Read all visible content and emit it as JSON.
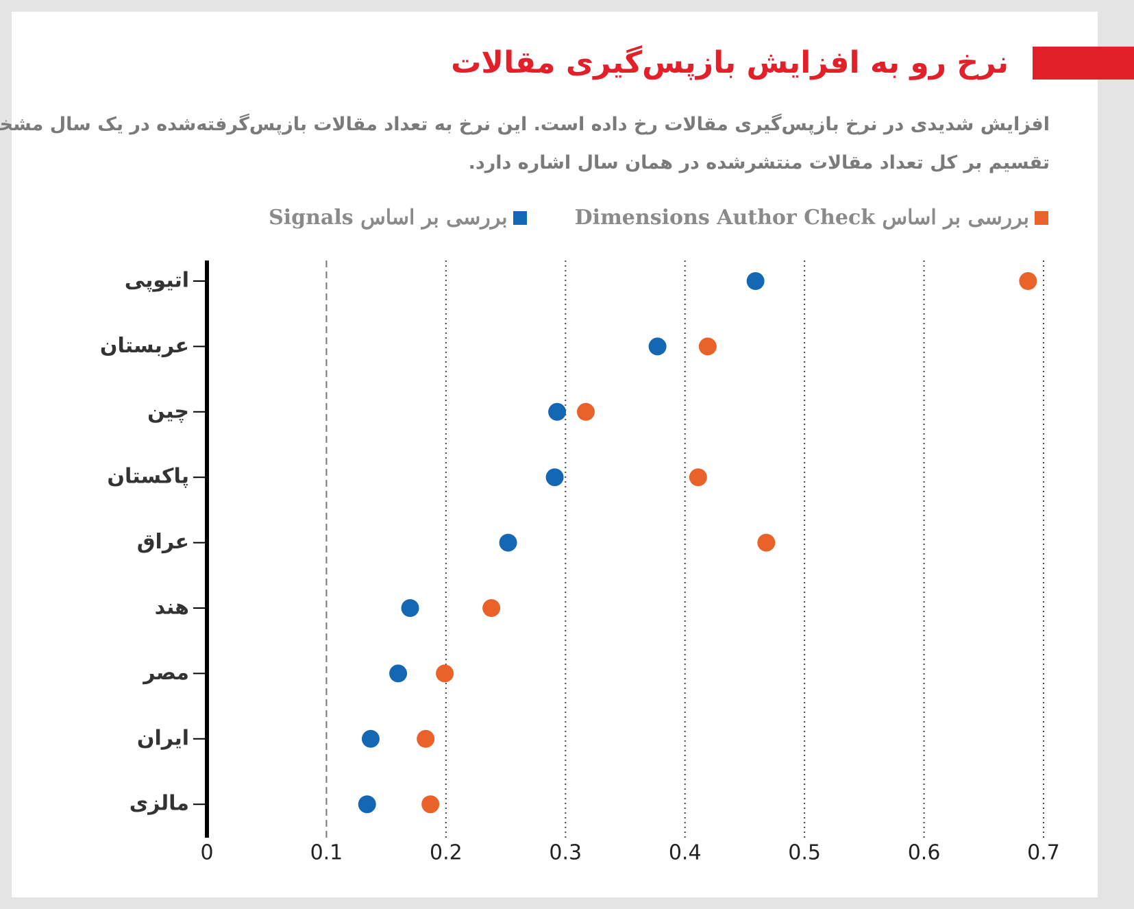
{
  "chart_data": {
    "type": "dot",
    "title": "نرخ رو به افزایش بازپس‌گیری مقالات",
    "subtitle": [
      "افزایش شدیدی در نرخ بازپس‌گیری مقالات رخ داده است. این نرخ به تعداد مقالات بازپس‌گرفته‌شده در یک سال مشخص",
      "تقسیم بر کل تعداد مقالات منتشرشده در همان سال اشاره دارد."
    ],
    "categories": [
      "اتیوپی",
      "عربستان",
      "چین",
      "پاکستان",
      "عراق",
      "هند",
      "مصر",
      "ایران",
      "مالزی"
    ],
    "series": [
      {
        "name": "بررسی بر اساس Dimensions Author Check",
        "color": "#e8622a",
        "values": [
          0.687,
          0.419,
          0.317,
          0.411,
          0.468,
          0.238,
          0.199,
          0.183,
          0.187
        ]
      },
      {
        "name": "بررسی بر اساس Signals",
        "color": "#1467b3",
        "values": [
          0.459,
          0.377,
          0.293,
          0.291,
          0.252,
          0.17,
          0.16,
          0.137,
          0.134
        ]
      }
    ],
    "xlim": [
      0,
      0.7
    ],
    "xticks": [
      0,
      0.1,
      0.2,
      0.3,
      0.4,
      0.5,
      0.6,
      0.7
    ],
    "grid": true
  }
}
